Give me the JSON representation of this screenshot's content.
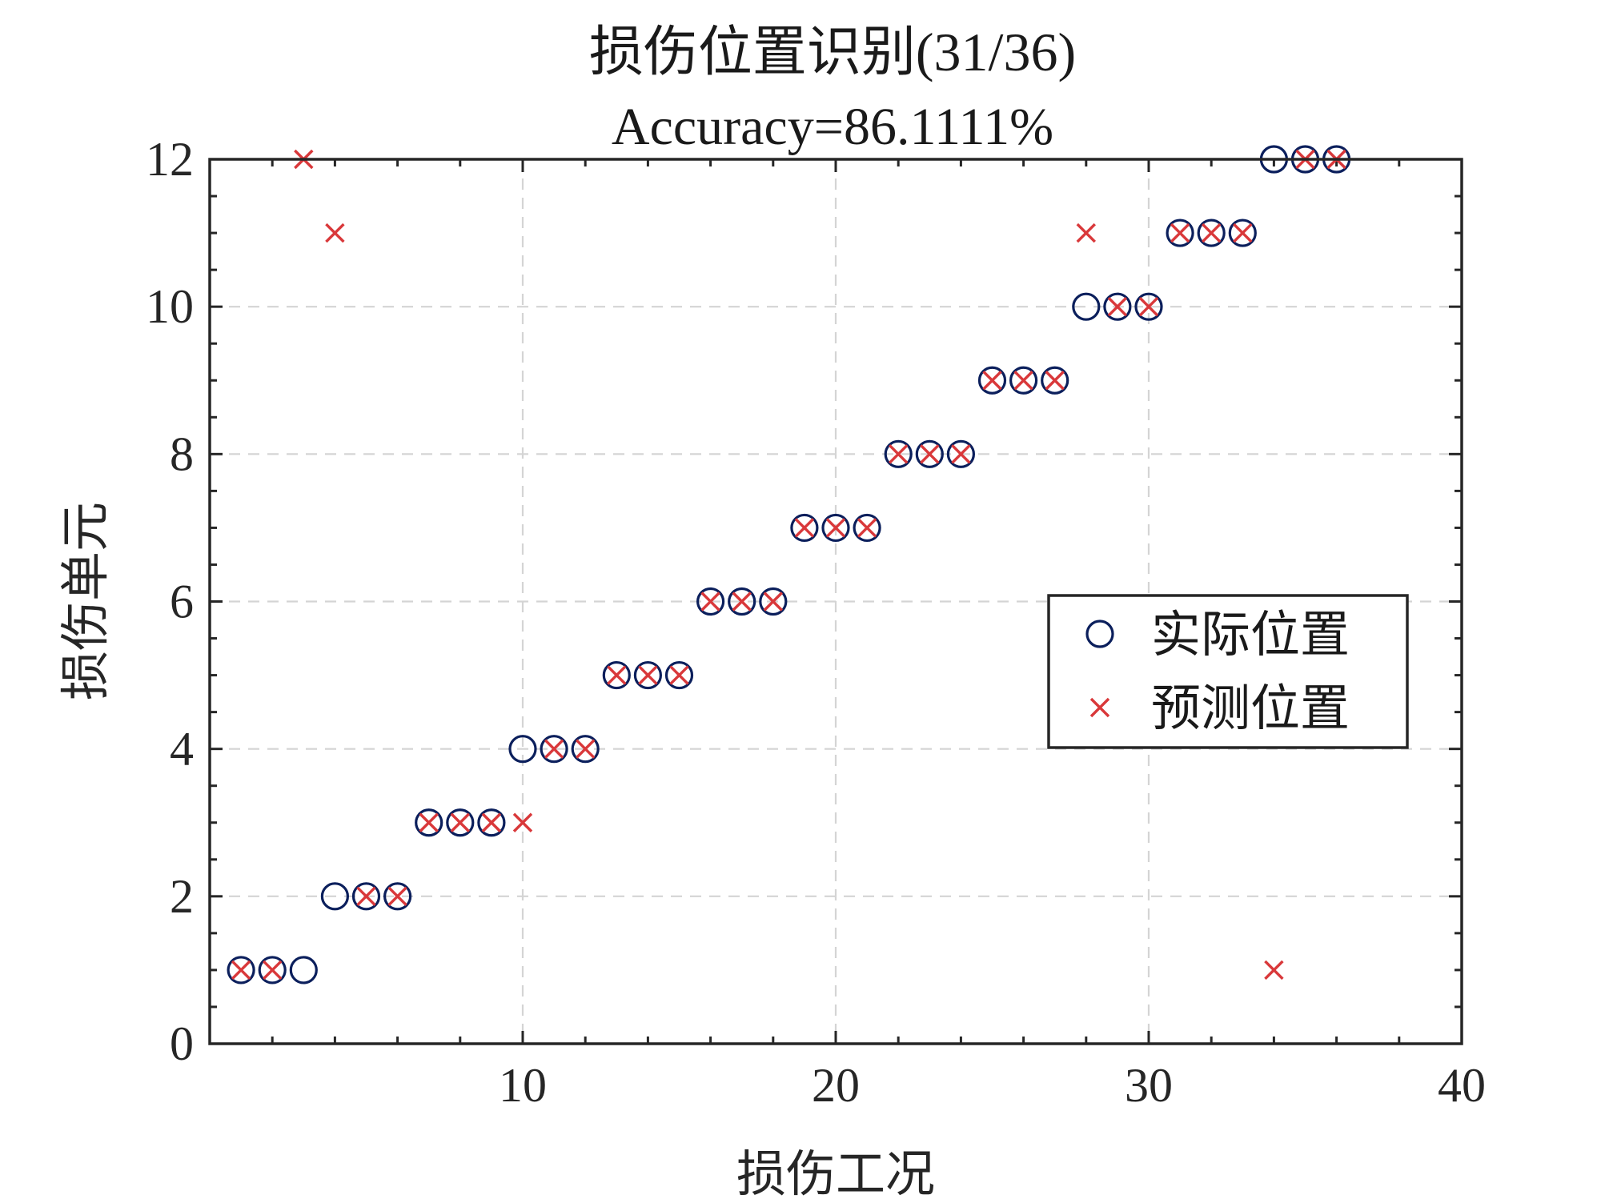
{
  "chart_data": {
    "type": "scatter",
    "title": "损伤位置识别(31/36)",
    "subtitle": "Accuracy=86.1111%",
    "xlabel": "损伤工况",
    "ylabel": "损伤单元",
    "xlim": [
      0,
      40
    ],
    "ylim": [
      0,
      12
    ],
    "xticks": [
      10,
      20,
      30,
      40
    ],
    "xtick_labels": [
      "10",
      "20",
      "30",
      "40"
    ],
    "yticks": [
      0,
      2,
      4,
      6,
      8,
      10,
      12
    ],
    "ytick_labels": [
      "0",
      "2",
      "4",
      "6",
      "8",
      "10",
      "12"
    ],
    "grid": true,
    "legend_position": "right",
    "series": [
      {
        "name": "实际位置",
        "marker": "circle",
        "color": "#0b1f5c",
        "x": [
          1,
          2,
          3,
          4,
          5,
          6,
          7,
          8,
          9,
          10,
          11,
          12,
          13,
          14,
          15,
          16,
          17,
          18,
          19,
          20,
          21,
          22,
          23,
          24,
          25,
          26,
          27,
          28,
          29,
          30,
          31,
          32,
          33,
          34,
          35,
          36
        ],
        "y": [
          1,
          1,
          1,
          2,
          2,
          2,
          3,
          3,
          3,
          4,
          4,
          4,
          5,
          5,
          5,
          6,
          6,
          6,
          7,
          7,
          7,
          8,
          8,
          8,
          9,
          9,
          9,
          10,
          10,
          10,
          11,
          11,
          11,
          12,
          12,
          12
        ]
      },
      {
        "name": "预测位置",
        "marker": "x",
        "color": "#d9383a",
        "x": [
          1,
          2,
          3,
          4,
          5,
          6,
          7,
          8,
          9,
          10,
          11,
          12,
          13,
          14,
          15,
          16,
          17,
          18,
          19,
          20,
          21,
          22,
          23,
          24,
          25,
          26,
          27,
          28,
          29,
          30,
          31,
          32,
          33,
          34,
          35,
          36
        ],
        "y": [
          1,
          1,
          12,
          11,
          2,
          2,
          3,
          3,
          3,
          3,
          4,
          4,
          5,
          5,
          5,
          6,
          6,
          6,
          7,
          7,
          7,
          8,
          8,
          8,
          9,
          9,
          9,
          11,
          10,
          10,
          11,
          11,
          11,
          1,
          12,
          12
        ]
      }
    ]
  }
}
